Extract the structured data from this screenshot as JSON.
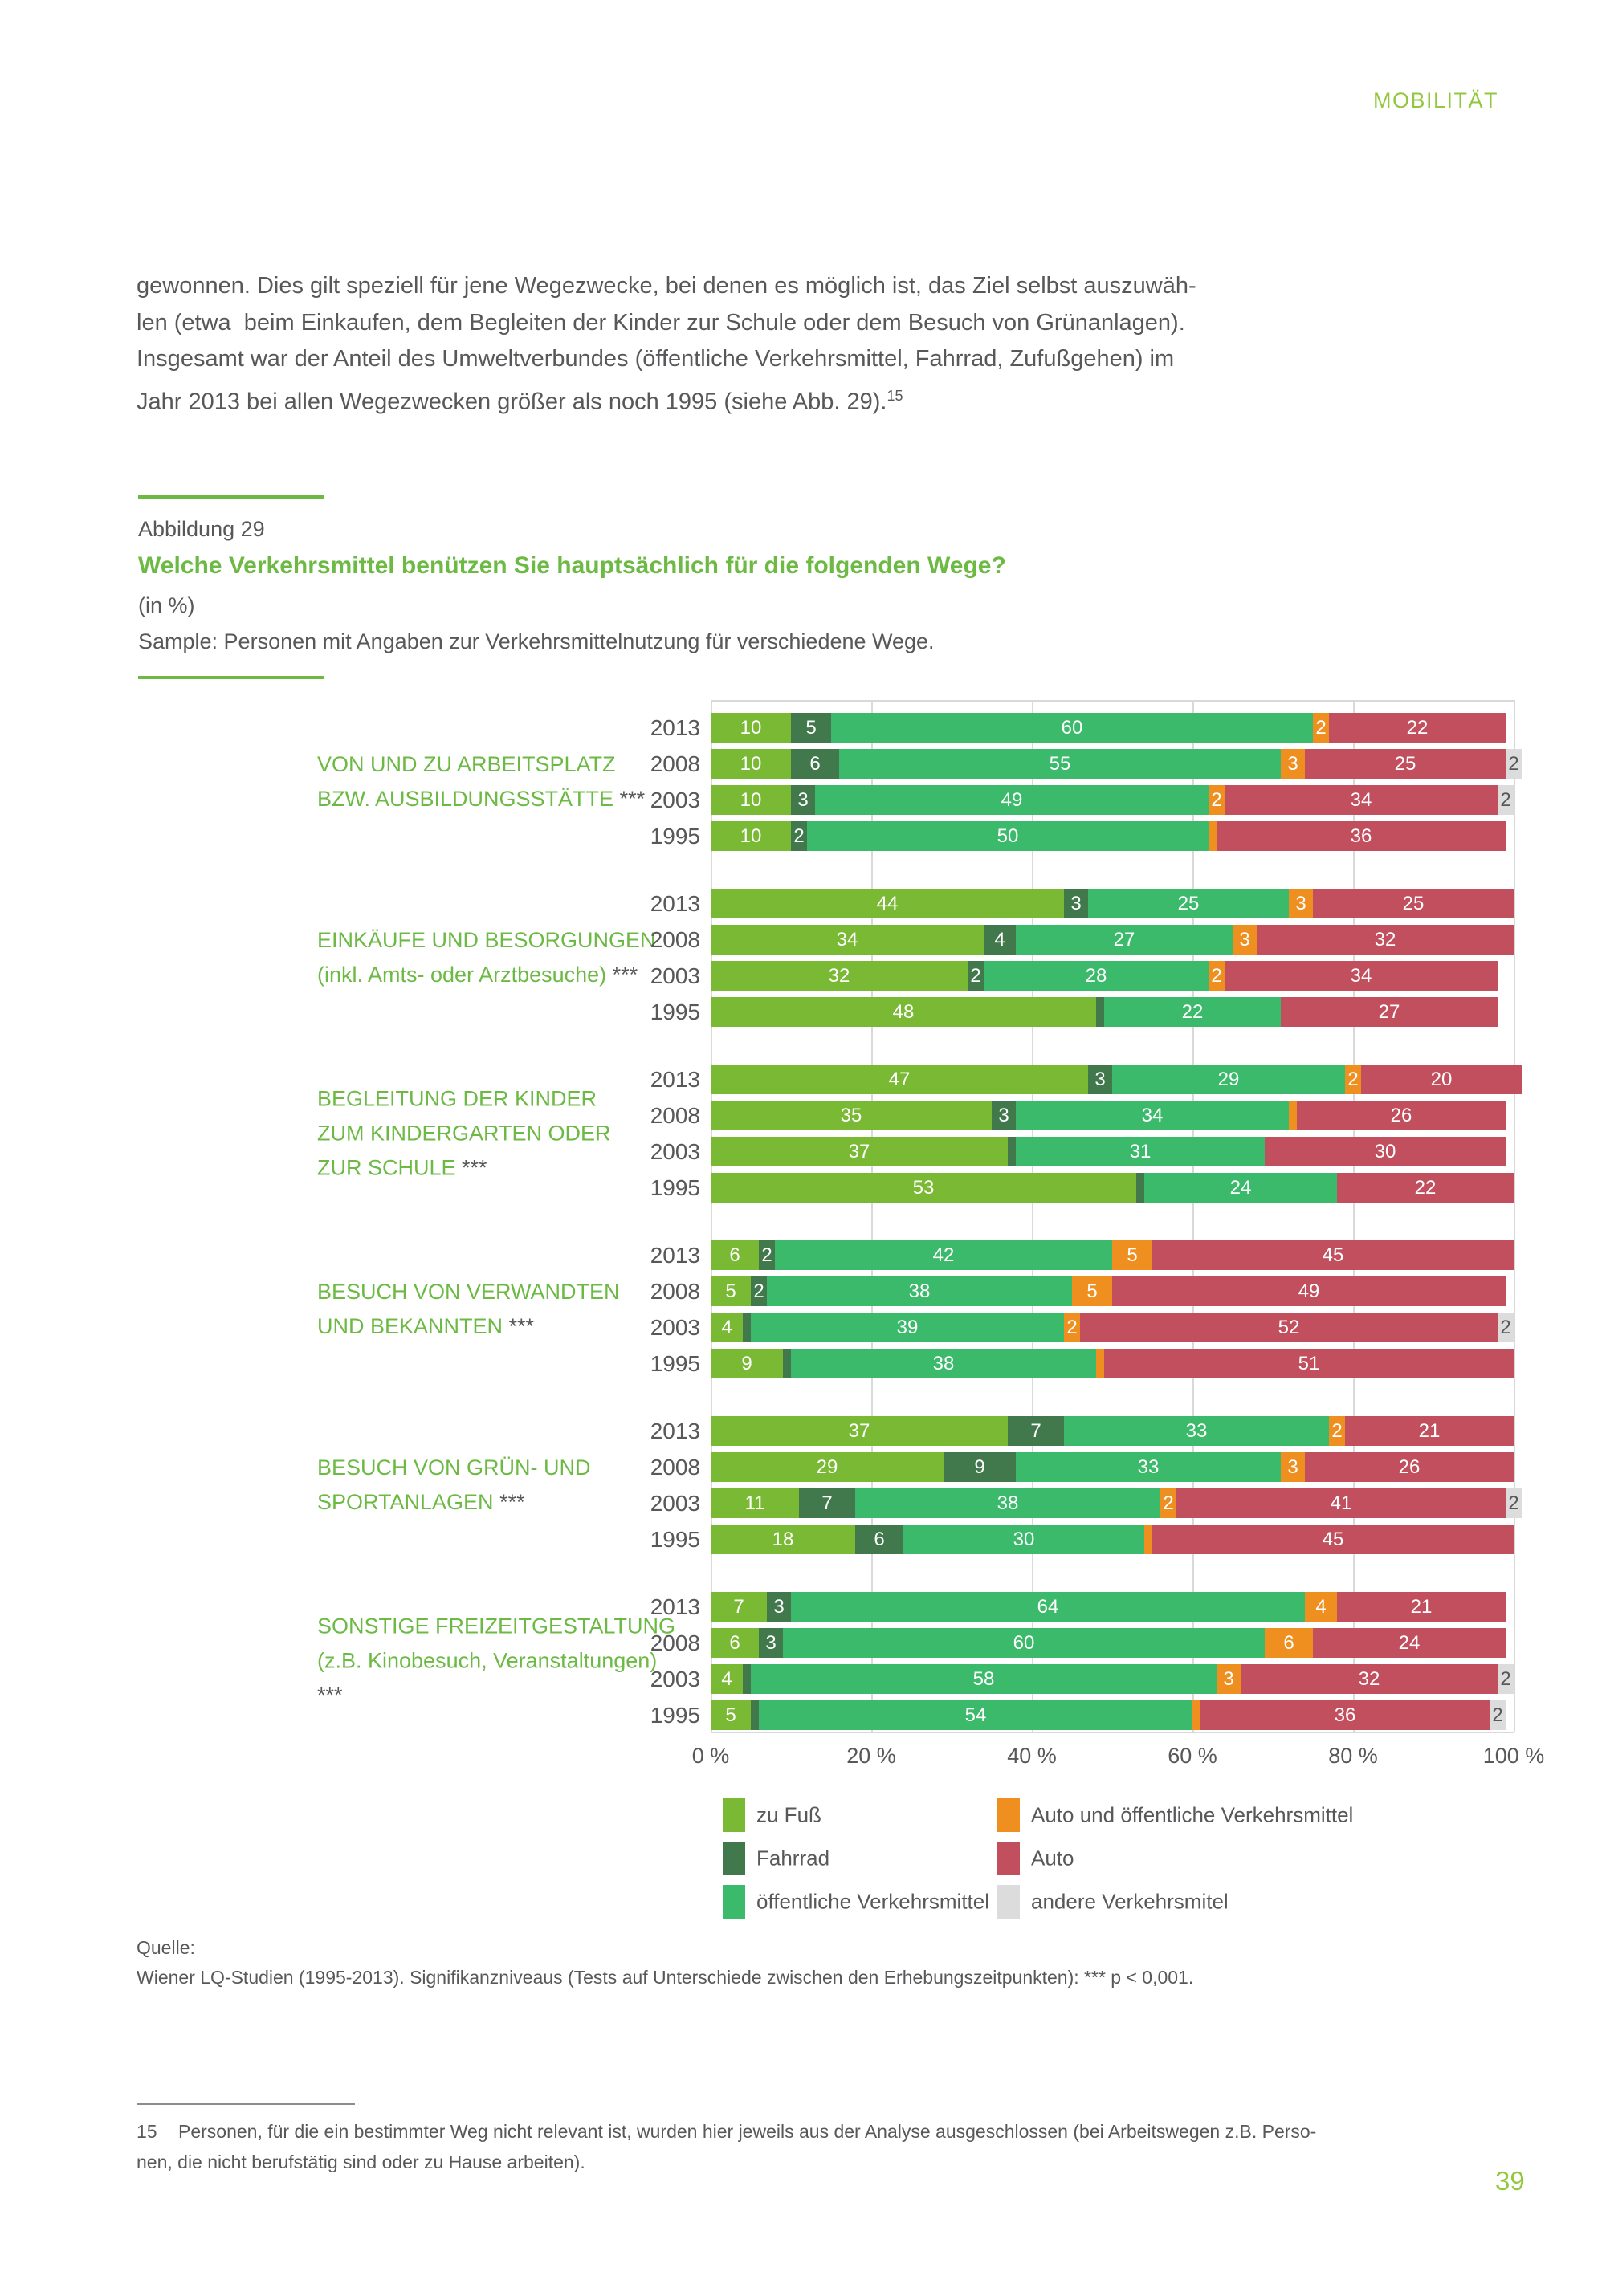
{
  "colors": {
    "accent_green": "#6cb944",
    "header_green": "#93c83e",
    "text_gray": "#58585a",
    "grid_gray": "#d9d9d9",
    "footnote_rule_gray": "#8c8c8c"
  },
  "header": {
    "title": "MOBILITÄT"
  },
  "page_number": "39",
  "intro": {
    "lines": [
      "gewonnen. Dies gilt speziell für jene Wegezwecke, bei denen es möglich ist, das Ziel selbst auszuwäh-",
      "len (etwa  beim Einkaufen, dem Begleiten der Kinder zur Schule oder dem Besuch von Grünanlagen).",
      "Insgesamt war der Anteil des Umweltverbundes (öffentliche Verkehrsmittel, Fahrrad, Zufußgehen) im",
      "Jahr 2013 bei allen Wegezwecken größer als noch 1995 (siehe Abb. 29)."
    ],
    "footnote_ref": "15"
  },
  "figure": {
    "label": "Abbildung 29",
    "title": "Welche Verkehrsmittel benützen Sie hauptsächlich für die folgenden Wege?",
    "unit": "(in %)",
    "sample": "Sample: Personen mit Angaben zur Verkehrsmittelnutzung für verschiedene Wege."
  },
  "source": {
    "label": "Quelle:",
    "text": "Wiener LQ-Studien (1995-2013). Signifikanzniveaus (Tests auf Unterschiede zwischen den Erhebungszeitpunkten): *** p < 0,001."
  },
  "footnote": {
    "number": "15",
    "lines": [
      "Personen, für die ein bestimmter Weg nicht relevant ist, wurden hier jeweils aus der Analyse ausgeschlossen (bei Arbeitswegen z.B. Perso-",
      "nen, die nicht berufstätig sind oder zu Hause arbeiten)."
    ]
  },
  "legend": {
    "items": [
      {
        "key": "fuss",
        "label": "zu Fuß"
      },
      {
        "key": "rad",
        "label": "Fahrrad"
      },
      {
        "key": "oeffi",
        "label": "öffentliche Verkehrsmittel"
      },
      {
        "key": "auto_oeffi",
        "label": "Auto und öffentliche Verkehrsmittel"
      },
      {
        "key": "auto",
        "label": "Auto"
      },
      {
        "key": "andere",
        "label": "andere Verkehrsmitel"
      }
    ]
  },
  "chart_data": {
    "type": "bar",
    "variant": "horizontal-stacked",
    "title": "Welche Verkehrsmittel benützen Sie hauptsächlich für die folgenden Wege?",
    "unit": "%",
    "xlabel": "",
    "ylabel": "",
    "xlim": [
      0,
      100
    ],
    "grid": true,
    "x_ticks": [
      "0 %",
      "20 %",
      "40 %",
      "60 %",
      "80 %",
      "100 %"
    ],
    "colors": {
      "fuss": "#79b933",
      "rad": "#41794d",
      "oeffi": "#3cba6b",
      "auto_oeffi": "#ee8f1f",
      "auto": "#c14f5e",
      "andere": "#dcdcdc"
    },
    "groups": [
      {
        "label_lines": [
          "VON UND ZU ARBEITSPLATZ",
          "BZW. AUSBILDUNGSSTÄTTE ***"
        ],
        "rows": [
          {
            "year": "2013",
            "segments": [
              {
                "k": "fuss",
                "v": 10,
                "t": "10"
              },
              {
                "k": "rad",
                "v": 5,
                "t": "5"
              },
              {
                "k": "oeffi",
                "v": 60,
                "t": "60"
              },
              {
                "k": "auto_oeffi",
                "v": 2,
                "t": "2"
              },
              {
                "k": "auto",
                "v": 22,
                "t": "22"
              }
            ]
          },
          {
            "year": "2008",
            "segments": [
              {
                "k": "fuss",
                "v": 10,
                "t": "10"
              },
              {
                "k": "rad",
                "v": 6,
                "t": "6"
              },
              {
                "k": "oeffi",
                "v": 55,
                "t": "55"
              },
              {
                "k": "auto_oeffi",
                "v": 3,
                "t": "3"
              },
              {
                "k": "auto",
                "v": 25,
                "t": "25"
              },
              {
                "k": "andere",
                "v": 2,
                "t": "2"
              }
            ]
          },
          {
            "year": "2003",
            "segments": [
              {
                "k": "fuss",
                "v": 10,
                "t": "10"
              },
              {
                "k": "rad",
                "v": 3,
                "t": "3"
              },
              {
                "k": "oeffi",
                "v": 49,
                "t": "49"
              },
              {
                "k": "auto_oeffi",
                "v": 2,
                "t": "2"
              },
              {
                "k": "auto",
                "v": 34,
                "t": "34"
              },
              {
                "k": "andere",
                "v": 2,
                "t": "2"
              }
            ]
          },
          {
            "year": "1995",
            "segments": [
              {
                "k": "fuss",
                "v": 10,
                "t": "10"
              },
              {
                "k": "rad",
                "v": 2,
                "t": "2"
              },
              {
                "k": "oeffi",
                "v": 50,
                "t": "50"
              },
              {
                "k": "auto_oeffi",
                "v": 1,
                "t": ""
              },
              {
                "k": "auto",
                "v": 36,
                "t": "36"
              }
            ]
          }
        ]
      },
      {
        "label_lines": [
          "EINKÄUFE UND BESORGUNGEN",
          "(inkl. Amts- oder Arztbesuche) ***"
        ],
        "rows": [
          {
            "year": "2013",
            "segments": [
              {
                "k": "fuss",
                "v": 44,
                "t": "44"
              },
              {
                "k": "rad",
                "v": 3,
                "t": "3"
              },
              {
                "k": "oeffi",
                "v": 25,
                "t": "25"
              },
              {
                "k": "auto_oeffi",
                "v": 3,
                "t": "3"
              },
              {
                "k": "auto",
                "v": 25,
                "t": "25"
              }
            ]
          },
          {
            "year": "2008",
            "segments": [
              {
                "k": "fuss",
                "v": 34,
                "t": "34"
              },
              {
                "k": "rad",
                "v": 4,
                "t": "4"
              },
              {
                "k": "oeffi",
                "v": 27,
                "t": "27"
              },
              {
                "k": "auto_oeffi",
                "v": 3,
                "t": "3"
              },
              {
                "k": "auto",
                "v": 32,
                "t": "32"
              }
            ]
          },
          {
            "year": "2003",
            "segments": [
              {
                "k": "fuss",
                "v": 32,
                "t": "32"
              },
              {
                "k": "rad",
                "v": 2,
                "t": "2"
              },
              {
                "k": "oeffi",
                "v": 28,
                "t": "28"
              },
              {
                "k": "auto_oeffi",
                "v": 2,
                "t": "2"
              },
              {
                "k": "auto",
                "v": 34,
                "t": "34"
              }
            ]
          },
          {
            "year": "1995",
            "segments": [
              {
                "k": "fuss",
                "v": 48,
                "t": "48"
              },
              {
                "k": "rad",
                "v": 1,
                "t": ""
              },
              {
                "k": "oeffi",
                "v": 22,
                "t": "22"
              },
              {
                "k": "auto",
                "v": 27,
                "t": "27"
              }
            ]
          }
        ]
      },
      {
        "label_lines": [
          "BEGLEITUNG DER KINDER",
          "ZUM KINDERGARTEN ODER",
          "ZUR SCHULE ***"
        ],
        "rows": [
          {
            "year": "2013",
            "segments": [
              {
                "k": "fuss",
                "v": 47,
                "t": "47"
              },
              {
                "k": "rad",
                "v": 3,
                "t": "3"
              },
              {
                "k": "oeffi",
                "v": 29,
                "t": "29"
              },
              {
                "k": "auto_oeffi",
                "v": 2,
                "t": "2"
              },
              {
                "k": "auto",
                "v": 20,
                "t": "20"
              }
            ]
          },
          {
            "year": "2008",
            "segments": [
              {
                "k": "fuss",
                "v": 35,
                "t": "35"
              },
              {
                "k": "rad",
                "v": 3,
                "t": "3"
              },
              {
                "k": "oeffi",
                "v": 34,
                "t": "34"
              },
              {
                "k": "auto_oeffi",
                "v": 1,
                "t": ""
              },
              {
                "k": "auto",
                "v": 26,
                "t": "26"
              }
            ]
          },
          {
            "year": "2003",
            "segments": [
              {
                "k": "fuss",
                "v": 37,
                "t": "37"
              },
              {
                "k": "rad",
                "v": 1,
                "t": ""
              },
              {
                "k": "oeffi",
                "v": 31,
                "t": "31"
              },
              {
                "k": "auto",
                "v": 30,
                "t": "30"
              }
            ]
          },
          {
            "year": "1995",
            "segments": [
              {
                "k": "fuss",
                "v": 53,
                "t": "53"
              },
              {
                "k": "rad",
                "v": 1,
                "t": ""
              },
              {
                "k": "oeffi",
                "v": 24,
                "t": "24"
              },
              {
                "k": "auto",
                "v": 22,
                "t": "22"
              }
            ]
          }
        ]
      },
      {
        "label_lines": [
          "BESUCH VON VERWANDTEN",
          "UND BEKANNTEN ***"
        ],
        "rows": [
          {
            "year": "2013",
            "segments": [
              {
                "k": "fuss",
                "v": 6,
                "t": "6"
              },
              {
                "k": "rad",
                "v": 2,
                "t": "2"
              },
              {
                "k": "oeffi",
                "v": 42,
                "t": "42"
              },
              {
                "k": "auto_oeffi",
                "v": 5,
                "t": "5"
              },
              {
                "k": "auto",
                "v": 45,
                "t": "45"
              }
            ]
          },
          {
            "year": "2008",
            "segments": [
              {
                "k": "fuss",
                "v": 5,
                "t": "5"
              },
              {
                "k": "rad",
                "v": 2,
                "t": "2"
              },
              {
                "k": "oeffi",
                "v": 38,
                "t": "38"
              },
              {
                "k": "auto_oeffi",
                "v": 5,
                "t": "5"
              },
              {
                "k": "auto",
                "v": 49,
                "t": "49"
              }
            ]
          },
          {
            "year": "2003",
            "segments": [
              {
                "k": "fuss",
                "v": 4,
                "t": "4"
              },
              {
                "k": "rad",
                "v": 1,
                "t": ""
              },
              {
                "k": "oeffi",
                "v": 39,
                "t": "39"
              },
              {
                "k": "auto_oeffi",
                "v": 2,
                "t": "2"
              },
              {
                "k": "auto",
                "v": 52,
                "t": "52"
              },
              {
                "k": "andere",
                "v": 2,
                "t": "2"
              }
            ]
          },
          {
            "year": "1995",
            "segments": [
              {
                "k": "fuss",
                "v": 9,
                "t": "9"
              },
              {
                "k": "rad",
                "v": 1,
                "t": ""
              },
              {
                "k": "oeffi",
                "v": 38,
                "t": "38"
              },
              {
                "k": "auto_oeffi",
                "v": 1,
                "t": ""
              },
              {
                "k": "auto",
                "v": 51,
                "t": "51"
              }
            ]
          }
        ]
      },
      {
        "label_lines": [
          "BESUCH VON GRÜN- UND",
          "SPORTANLAGEN ***"
        ],
        "rows": [
          {
            "year": "2013",
            "segments": [
              {
                "k": "fuss",
                "v": 37,
                "t": "37"
              },
              {
                "k": "rad",
                "v": 7,
                "t": "7"
              },
              {
                "k": "oeffi",
                "v": 33,
                "t": "33"
              },
              {
                "k": "auto_oeffi",
                "v": 2,
                "t": "2"
              },
              {
                "k": "auto",
                "v": 21,
                "t": "21"
              }
            ]
          },
          {
            "year": "2008",
            "segments": [
              {
                "k": "fuss",
                "v": 29,
                "t": "29"
              },
              {
                "k": "rad",
                "v": 9,
                "t": "9"
              },
              {
                "k": "oeffi",
                "v": 33,
                "t": "33"
              },
              {
                "k": "auto_oeffi",
                "v": 3,
                "t": "3"
              },
              {
                "k": "auto",
                "v": 26,
                "t": "26"
              }
            ]
          },
          {
            "year": "2003",
            "segments": [
              {
                "k": "fuss",
                "v": 11,
                "t": "11"
              },
              {
                "k": "rad",
                "v": 7,
                "t": "7"
              },
              {
                "k": "oeffi",
                "v": 38,
                "t": "38"
              },
              {
                "k": "auto_oeffi",
                "v": 2,
                "t": "2"
              },
              {
                "k": "auto",
                "v": 41,
                "t": "41"
              },
              {
                "k": "andere",
                "v": 2,
                "t": "2"
              }
            ]
          },
          {
            "year": "1995",
            "segments": [
              {
                "k": "fuss",
                "v": 18,
                "t": "18"
              },
              {
                "k": "rad",
                "v": 6,
                "t": "6"
              },
              {
                "k": "oeffi",
                "v": 30,
                "t": "30"
              },
              {
                "k": "auto_oeffi",
                "v": 1,
                "t": ""
              },
              {
                "k": "auto",
                "v": 45,
                "t": "45"
              }
            ]
          }
        ]
      },
      {
        "label_lines": [
          "SONSTIGE FREIZEITGESTALTUNG",
          "(z.B. Kinobesuch, Veranstaltungen)",
          "***"
        ],
        "rows": [
          {
            "year": "2013",
            "segments": [
              {
                "k": "fuss",
                "v": 7,
                "t": "7"
              },
              {
                "k": "rad",
                "v": 3,
                "t": "3"
              },
              {
                "k": "oeffi",
                "v": 64,
                "t": "64"
              },
              {
                "k": "auto_oeffi",
                "v": 4,
                "t": "4"
              },
              {
                "k": "auto",
                "v": 21,
                "t": "21"
              }
            ]
          },
          {
            "year": "2008",
            "segments": [
              {
                "k": "fuss",
                "v": 6,
                "t": "6"
              },
              {
                "k": "rad",
                "v": 3,
                "t": "3"
              },
              {
                "k": "oeffi",
                "v": 60,
                "t": "60"
              },
              {
                "k": "auto_oeffi",
                "v": 6,
                "t": "6"
              },
              {
                "k": "auto",
                "v": 24,
                "t": "24"
              }
            ]
          },
          {
            "year": "2003",
            "segments": [
              {
                "k": "fuss",
                "v": 4,
                "t": "4"
              },
              {
                "k": "rad",
                "v": 1,
                "t": ""
              },
              {
                "k": "oeffi",
                "v": 58,
                "t": "58"
              },
              {
                "k": "auto_oeffi",
                "v": 3,
                "t": "3"
              },
              {
                "k": "auto",
                "v": 32,
                "t": "32"
              },
              {
                "k": "andere",
                "v": 2,
                "t": "2"
              }
            ]
          },
          {
            "year": "1995",
            "segments": [
              {
                "k": "fuss",
                "v": 5,
                "t": "5"
              },
              {
                "k": "rad",
                "v": 1,
                "t": ""
              },
              {
                "k": "oeffi",
                "v": 54,
                "t": "54"
              },
              {
                "k": "auto_oeffi",
                "v": 1,
                "t": ""
              },
              {
                "k": "auto",
                "v": 36,
                "t": "36"
              },
              {
                "k": "andere",
                "v": 2,
                "t": "2"
              }
            ]
          }
        ]
      }
    ]
  }
}
